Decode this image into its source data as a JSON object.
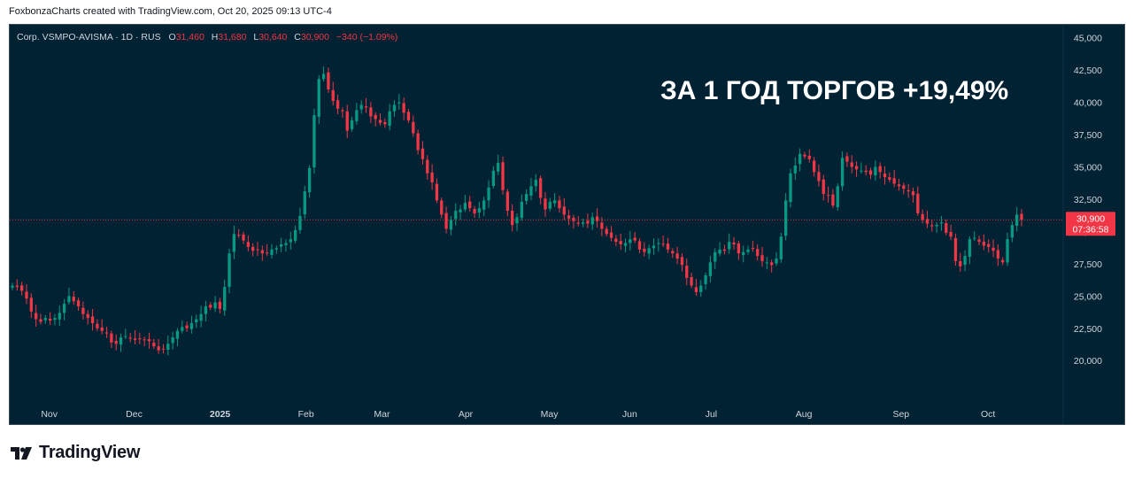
{
  "header": {
    "attribution": "FoxbonzaCharts created with TradingView.com, Oct 20, 2025 09:13 UTC-4"
  },
  "legend": {
    "symbol": "Corp. VSMPO-AVISMA · 1D · RUS",
    "open_label": "O",
    "open": "31,460",
    "high_label": "H",
    "high": "31,680",
    "low_label": "L",
    "low": "30,640",
    "close_label": "C",
    "close": "30,900",
    "change": "−340 (−1.09%)"
  },
  "headline": "ЗА 1 ГОД ТОРГОВ +19,49%",
  "price_badge": {
    "price": "30,900",
    "countdown": "07:36:58"
  },
  "footer": {
    "brand": "TradingView"
  },
  "colors": {
    "up": "#089981",
    "down": "#f23645",
    "background": "#012233",
    "axis_text": "#d1d4dc"
  },
  "chart_data": {
    "type": "candlestick",
    "y_ticks": [
      "20,000",
      "22,500",
      "25,000",
      "27,500",
      "30,000",
      "32,500",
      "35,000",
      "37,500",
      "40,000",
      "42,500",
      "45,000"
    ],
    "ylim": [
      17000,
      46000
    ],
    "x_ticks": [
      "Nov",
      "Dec",
      "2025",
      "Feb",
      "Mar",
      "Apr",
      "May",
      "Jun",
      "Jul",
      "Aug",
      "Sep",
      "Oct"
    ],
    "last_price": 30900,
    "closes": [
      25800,
      25700,
      25400,
      24800,
      23800,
      23200,
      23000,
      23300,
      23100,
      23300,
      23700,
      24400,
      25000,
      24600,
      24200,
      23600,
      23300,
      22900,
      22500,
      22300,
      22100,
      21400,
      21300,
      21800,
      21900,
      21700,
      21600,
      21700,
      21600,
      21500,
      21100,
      20800,
      20900,
      21300,
      21800,
      22300,
      22600,
      22500,
      22900,
      23200,
      23600,
      24200,
      24100,
      24500,
      24000,
      25700,
      28300,
      29800,
      29700,
      29300,
      28800,
      28500,
      28600,
      28300,
      28300,
      28600,
      28700,
      29000,
      29100,
      29400,
      30100,
      31200,
      33100,
      34900,
      39000,
      41800,
      42200,
      41000,
      40100,
      39500,
      39300,
      37800,
      38600,
      39400,
      39800,
      39600,
      38900,
      38700,
      38400,
      38300,
      39300,
      39800,
      40000,
      39200,
      38600,
      37600,
      36300,
      35600,
      34500,
      33800,
      32400,
      31300,
      30200,
      30900,
      31600,
      31700,
      32200,
      31800,
      31400,
      31800,
      32400,
      33400,
      34700,
      35300,
      33200,
      31600,
      30500,
      31100,
      32300,
      32900,
      33500,
      34000,
      32600,
      31700,
      32300,
      32400,
      31800,
      31300,
      31000,
      30800,
      30600,
      30700,
      30600,
      31100,
      30800,
      30200,
      29800,
      29500,
      29200,
      29000,
      29100,
      29400,
      29300,
      28600,
      28400,
      28700,
      28900,
      29100,
      29000,
      28600,
      28300,
      27900,
      27400,
      26400,
      25800,
      25300,
      25800,
      26600,
      27600,
      28400,
      28600,
      28500,
      29200,
      29000,
      28300,
      28400,
      28600,
      28700,
      28100,
      27700,
      27600,
      27400,
      27900,
      29600,
      32400,
      34500,
      35100,
      36000,
      35800,
      35600,
      34600,
      33900,
      32900,
      32800,
      32000,
      33500,
      35700,
      35400,
      35000,
      34800,
      34700,
      34600,
      34400,
      35000,
      34600,
      34200,
      34000,
      33700,
      33500,
      33300,
      33100,
      32800,
      31400,
      30900,
      30600,
      30400,
      30500,
      30700,
      29900,
      29600,
      27700,
      27300,
      28100,
      29400,
      29500,
      29200,
      28900,
      28800,
      28500,
      27900,
      27600,
      29400,
      30500,
      31300,
      30900
    ]
  }
}
